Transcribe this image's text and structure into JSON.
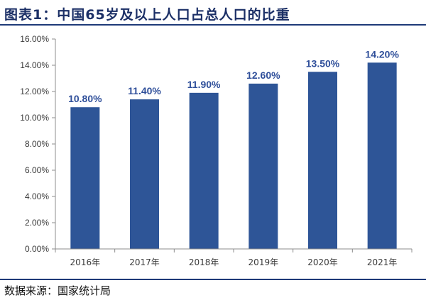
{
  "header": {
    "title": "图表1：中国65岁及以上人口占总人口的比重"
  },
  "footer": {
    "source": "数据来源：国家统计局"
  },
  "colors": {
    "bar": "#2e5597",
    "data_label": "#2f4f9a",
    "rule": "#1e3a78"
  },
  "chart_data": {
    "type": "bar",
    "title": "图表1：中国65岁及以上人口占总人口的比重",
    "categories": [
      "2016年",
      "2017年",
      "2018年",
      "2019年",
      "2020年",
      "2021年"
    ],
    "values": [
      10.8,
      11.4,
      11.9,
      12.6,
      13.5,
      14.2
    ],
    "value_labels": [
      "10.80%",
      "11.40%",
      "11.90%",
      "12.60%",
      "13.50%",
      "14.20%"
    ],
    "yticks": [
      "0.00%",
      "2.00%",
      "4.00%",
      "6.00%",
      "8.00%",
      "10.00%",
      "12.00%",
      "14.00%",
      "16.00%"
    ],
    "ylim": [
      0,
      16
    ],
    "xlabel": "",
    "ylabel": "",
    "grid": false,
    "legend": "none"
  }
}
